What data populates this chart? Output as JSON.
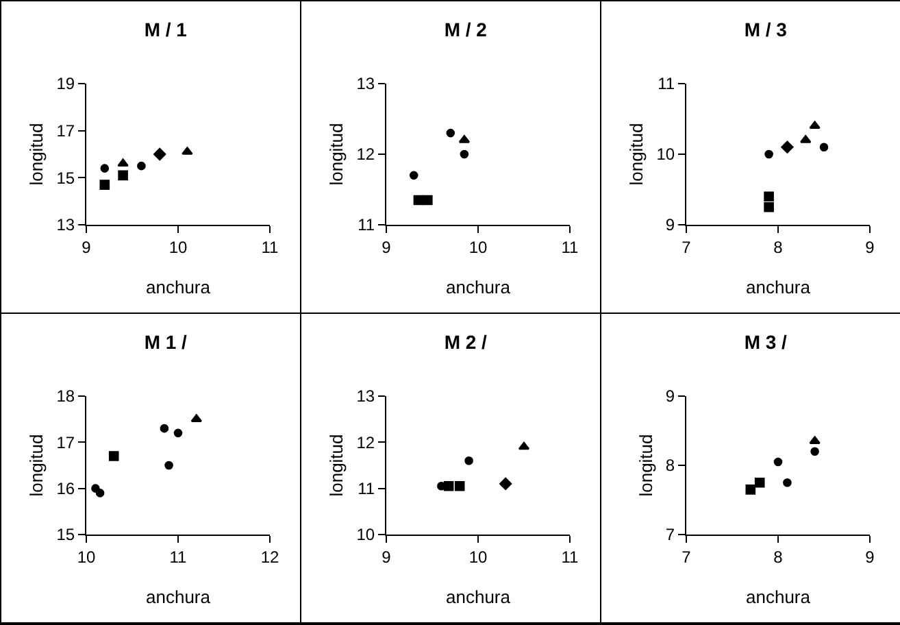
{
  "chart_data": [
    {
      "type": "scatter",
      "title": "M / 1",
      "xlabel": "anchura",
      "ylabel": "longitud",
      "xlim": [
        9,
        11
      ],
      "xticks": [
        9,
        10,
        11
      ],
      "ylim": [
        13,
        19
      ],
      "yticks": [
        13,
        15,
        17,
        19
      ],
      "grid": false,
      "series": [
        {
          "marker": "square",
          "color": "#000000",
          "x": [
            9.2,
            9.4
          ],
          "values": [
            14.7,
            15.1
          ]
        },
        {
          "marker": "circle",
          "color": "#000000",
          "x": [
            9.2,
            9.6
          ],
          "values": [
            15.4,
            15.5
          ]
        },
        {
          "marker": "triangle",
          "color": "#000000",
          "x": [
            9.4,
            10.1
          ],
          "values": [
            15.6,
            16.1
          ]
        },
        {
          "marker": "diamond",
          "color": "#000000",
          "x": [
            9.8
          ],
          "values": [
            16.0
          ]
        }
      ]
    },
    {
      "type": "scatter",
      "title": "M / 2",
      "xlabel": "anchura",
      "ylabel": "longitud",
      "xlim": [
        9,
        11
      ],
      "xticks": [
        9,
        10,
        11
      ],
      "ylim": [
        11,
        13
      ],
      "yticks": [
        11,
        12,
        13
      ],
      "grid": false,
      "series": [
        {
          "marker": "square",
          "color": "#000000",
          "x": [
            9.35,
            9.45
          ],
          "values": [
            11.35,
            11.35
          ]
        },
        {
          "marker": "circle",
          "color": "#000000",
          "x": [
            9.3,
            9.7,
            9.85
          ],
          "values": [
            11.7,
            12.3,
            12.0
          ]
        },
        {
          "marker": "triangle",
          "color": "#000000",
          "x": [
            9.85
          ],
          "values": [
            12.2
          ]
        }
      ]
    },
    {
      "type": "scatter",
      "title": "M / 3",
      "xlabel": "anchura",
      "ylabel": "longitud",
      "xlim": [
        7,
        9
      ],
      "xticks": [
        7,
        8,
        9
      ],
      "ylim": [
        9,
        11
      ],
      "yticks": [
        9,
        10,
        11
      ],
      "grid": false,
      "series": [
        {
          "marker": "square",
          "color": "#000000",
          "x": [
            7.9,
            7.9
          ],
          "values": [
            9.4,
            9.25
          ]
        },
        {
          "marker": "circle",
          "color": "#000000",
          "x": [
            7.9,
            8.5
          ],
          "values": [
            10.0,
            10.1
          ]
        },
        {
          "marker": "diamond",
          "color": "#000000",
          "x": [
            8.1
          ],
          "values": [
            10.1
          ]
        },
        {
          "marker": "triangle",
          "color": "#000000",
          "x": [
            8.3,
            8.4
          ],
          "values": [
            10.2,
            10.4
          ]
        }
      ]
    },
    {
      "type": "scatter",
      "title": "M 1 /",
      "xlabel": "anchura",
      "ylabel": "longitud",
      "xlim": [
        10,
        12
      ],
      "xticks": [
        10,
        11,
        12
      ],
      "ylim": [
        15,
        18
      ],
      "yticks": [
        15,
        16,
        17,
        18
      ],
      "grid": false,
      "series": [
        {
          "marker": "square",
          "color": "#000000",
          "x": [
            10.3
          ],
          "values": [
            16.7
          ]
        },
        {
          "marker": "circle",
          "color": "#000000",
          "x": [
            10.1,
            10.15,
            10.9,
            10.85,
            11.0
          ],
          "values": [
            16.0,
            15.9,
            16.5,
            17.3,
            17.2
          ]
        },
        {
          "marker": "triangle",
          "color": "#000000",
          "x": [
            11.2
          ],
          "values": [
            17.5
          ]
        }
      ]
    },
    {
      "type": "scatter",
      "title": "M 2 /",
      "xlabel": "anchura",
      "ylabel": "longitud",
      "xlim": [
        9,
        11
      ],
      "xticks": [
        9,
        10,
        11
      ],
      "ylim": [
        10,
        13
      ],
      "yticks": [
        10,
        11,
        12,
        13
      ],
      "grid": false,
      "series": [
        {
          "marker": "square",
          "color": "#000000",
          "x": [
            9.68,
            9.8
          ],
          "values": [
            11.05,
            11.05
          ]
        },
        {
          "marker": "circle",
          "color": "#000000",
          "x": [
            9.6,
            9.9
          ],
          "values": [
            11.05,
            11.6
          ]
        },
        {
          "marker": "diamond",
          "color": "#000000",
          "x": [
            10.3
          ],
          "values": [
            11.1
          ]
        },
        {
          "marker": "triangle",
          "color": "#000000",
          "x": [
            10.5
          ],
          "values": [
            11.9
          ]
        }
      ]
    },
    {
      "type": "scatter",
      "title": "M 3 /",
      "xlabel": "anchura",
      "ylabel": "longitud",
      "xlim": [
        7,
        9
      ],
      "xticks": [
        7,
        8,
        9
      ],
      "ylim": [
        7,
        9
      ],
      "yticks": [
        7,
        8,
        9
      ],
      "grid": false,
      "series": [
        {
          "marker": "square",
          "color": "#000000",
          "x": [
            7.7,
            7.8
          ],
          "values": [
            7.65,
            7.75
          ]
        },
        {
          "marker": "circle",
          "color": "#000000",
          "x": [
            8.0,
            8.1,
            8.4
          ],
          "values": [
            8.05,
            7.75,
            8.2
          ]
        },
        {
          "marker": "triangle",
          "color": "#000000",
          "x": [
            8.4
          ],
          "values": [
            8.35
          ]
        }
      ]
    }
  ]
}
